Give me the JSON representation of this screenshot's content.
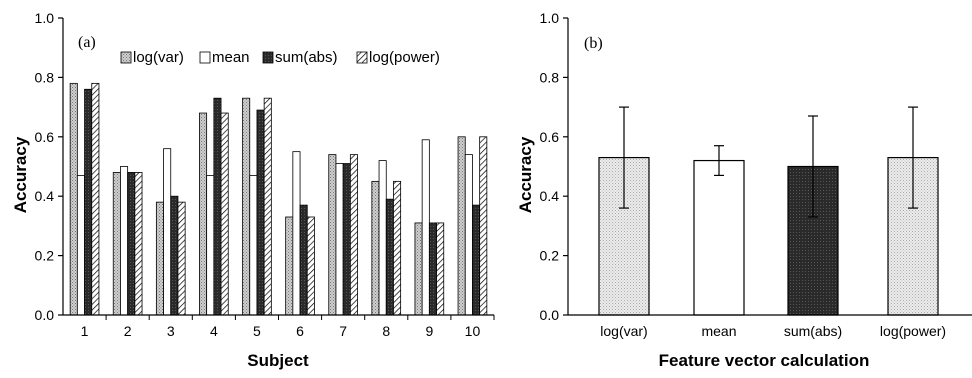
{
  "chart_data": [
    {
      "type": "bar",
      "panel_label": "(a)",
      "xlabel": "Subject",
      "ylabel": "Accuracy",
      "ylim": [
        0,
        1.0
      ],
      "yticks": [
        "0.0",
        "0.2",
        "0.4",
        "0.6",
        "0.8",
        "1.0"
      ],
      "categories": [
        "1",
        "2",
        "3",
        "4",
        "5",
        "6",
        "7",
        "8",
        "9",
        "10"
      ],
      "grid": false,
      "legend_position": "top",
      "series": [
        {
          "name": "log(var)",
          "pattern": "dots",
          "values": [
            0.78,
            0.48,
            0.38,
            0.68,
            0.73,
            0.33,
            0.54,
            0.45,
            0.31,
            0.6
          ]
        },
        {
          "name": "mean",
          "pattern": "white",
          "values": [
            0.47,
            0.5,
            0.56,
            0.47,
            0.47,
            0.55,
            0.51,
            0.52,
            0.59,
            0.54
          ]
        },
        {
          "name": "sum(abs)",
          "pattern": "dark",
          "values": [
            0.76,
            0.48,
            0.4,
            0.73,
            0.69,
            0.37,
            0.51,
            0.39,
            0.31,
            0.37
          ]
        },
        {
          "name": "log(power)",
          "pattern": "hatch",
          "values": [
            0.78,
            0.48,
            0.38,
            0.68,
            0.73,
            0.33,
            0.54,
            0.45,
            0.31,
            0.6
          ]
        }
      ]
    },
    {
      "type": "bar",
      "panel_label": "(b)",
      "xlabel": "Feature vector calculation",
      "ylabel": "Accuracy",
      "ylim": [
        0,
        1.0
      ],
      "yticks": [
        "0.0",
        "0.2",
        "0.4",
        "0.6",
        "0.8",
        "1.0"
      ],
      "categories": [
        "log(var)",
        "mean",
        "sum(abs)",
        "log(power)"
      ],
      "values": [
        0.53,
        0.52,
        0.5,
        0.53
      ],
      "error": [
        0.17,
        0.05,
        0.17,
        0.17
      ],
      "patterns": [
        "dots",
        "white",
        "dark",
        "dots"
      ],
      "grid": false
    }
  ]
}
